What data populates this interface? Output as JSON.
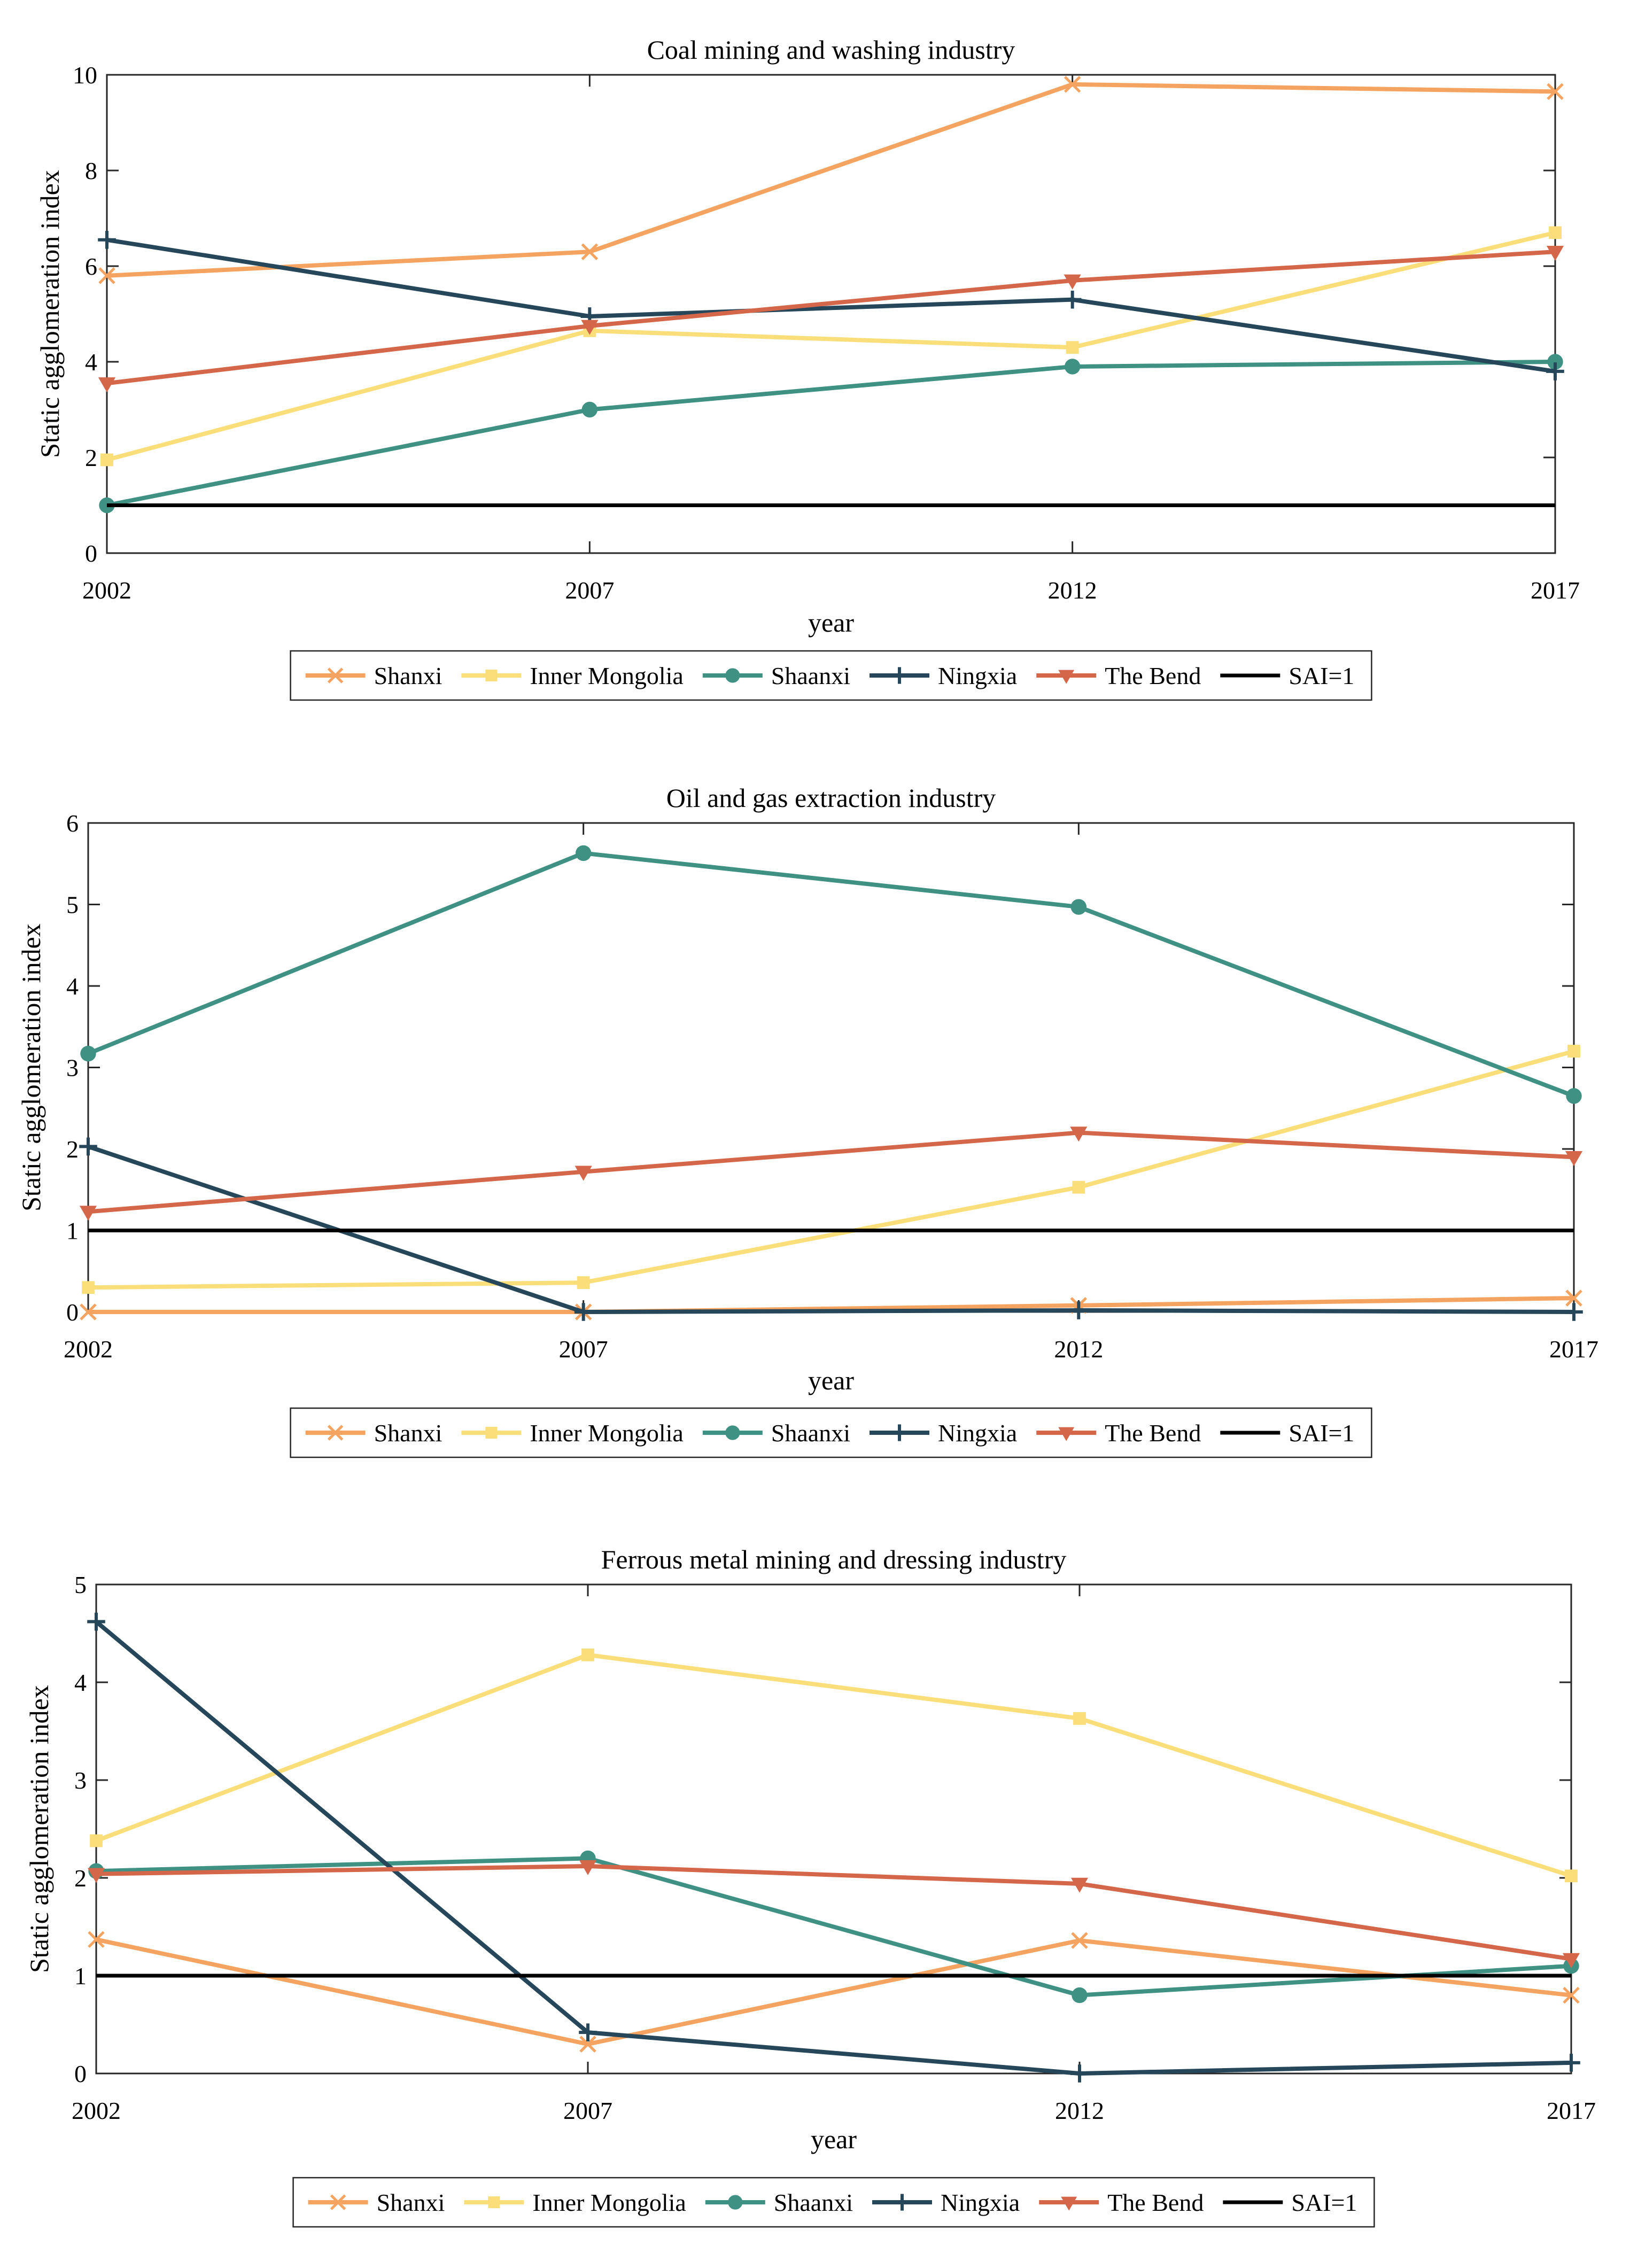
{
  "colors": {
    "Shanxi": "#F4A460",
    "Inner Mongolia": "#F9DE79",
    "Shaanxi": "#3E9183",
    "Ningxia": "#26475A",
    "The Bend": "#D4674A",
    "SAI=1": "#000000"
  },
  "chart_data": [
    {
      "type": "line",
      "title": "Coal mining and washing industry",
      "xlabel": "year",
      "ylabel": "Static agglomeration index",
      "x": [
        2002,
        2007,
        2012,
        2017
      ],
      "ylim": [
        0,
        10
      ],
      "yticks": [
        0,
        2,
        4,
        6,
        8,
        10
      ],
      "legend": "bottom",
      "series": [
        {
          "name": "Shanxi",
          "marker": "x",
          "values": [
            5.8,
            6.3,
            9.8,
            9.65
          ]
        },
        {
          "name": "Inner Mongolia",
          "marker": "square",
          "values": [
            1.95,
            4.65,
            4.3,
            6.7
          ]
        },
        {
          "name": "Shaanxi",
          "marker": "circle",
          "values": [
            1.0,
            3.0,
            3.9,
            4.0
          ]
        },
        {
          "name": "Ningxia",
          "marker": "plus",
          "values": [
            6.55,
            4.95,
            5.3,
            3.8
          ]
        },
        {
          "name": "The Bend",
          "marker": "triangle",
          "values": [
            3.55,
            4.75,
            5.7,
            6.3
          ]
        },
        {
          "name": "SAI=1",
          "marker": "none",
          "values": [
            1,
            1,
            1,
            1
          ]
        }
      ]
    },
    {
      "type": "line",
      "title": "Oil and gas extraction industry",
      "xlabel": "year",
      "ylabel": "Static agglomeration index",
      "x": [
        2002,
        2007,
        2012,
        2017
      ],
      "ylim": [
        0,
        6
      ],
      "yticks": [
        0,
        1,
        2,
        3,
        4,
        5,
        6
      ],
      "legend": "bottom",
      "series": [
        {
          "name": "Shanxi",
          "marker": "x",
          "values": [
            0.0,
            0.0,
            0.08,
            0.17
          ]
        },
        {
          "name": "Inner Mongolia",
          "marker": "square",
          "values": [
            0.3,
            0.36,
            1.53,
            3.2
          ]
        },
        {
          "name": "Shaanxi",
          "marker": "circle",
          "values": [
            3.17,
            5.63,
            4.97,
            2.65
          ]
        },
        {
          "name": "Ningxia",
          "marker": "plus",
          "values": [
            2.03,
            0.0,
            0.02,
            0.0
          ]
        },
        {
          "name": "The Bend",
          "marker": "triangle",
          "values": [
            1.23,
            1.72,
            2.2,
            1.9
          ]
        },
        {
          "name": "SAI=1",
          "marker": "none",
          "values": [
            1,
            1,
            1,
            1
          ]
        }
      ]
    },
    {
      "type": "line",
      "title": "Ferrous metal mining and dressing industry",
      "xlabel": "year",
      "ylabel": "Static agglomeration index",
      "x": [
        2002,
        2007,
        2012,
        2017
      ],
      "ylim": [
        0,
        5
      ],
      "yticks": [
        0,
        1,
        2,
        3,
        4,
        5
      ],
      "legend": "bottom",
      "series": [
        {
          "name": "Shanxi",
          "marker": "x",
          "values": [
            1.37,
            0.3,
            1.36,
            0.8
          ]
        },
        {
          "name": "Inner Mongolia",
          "marker": "square",
          "values": [
            2.38,
            4.28,
            3.63,
            2.02
          ]
        },
        {
          "name": "Shaanxi",
          "marker": "circle",
          "values": [
            2.07,
            2.2,
            0.8,
            1.1
          ]
        },
        {
          "name": "Ningxia",
          "marker": "plus",
          "values": [
            4.62,
            0.42,
            0.0,
            0.11
          ]
        },
        {
          "name": "The Bend",
          "marker": "triangle",
          "values": [
            2.04,
            2.12,
            1.94,
            1.17
          ]
        },
        {
          "name": "SAI=1",
          "marker": "none",
          "values": [
            1,
            1,
            1,
            1
          ]
        }
      ]
    }
  ]
}
